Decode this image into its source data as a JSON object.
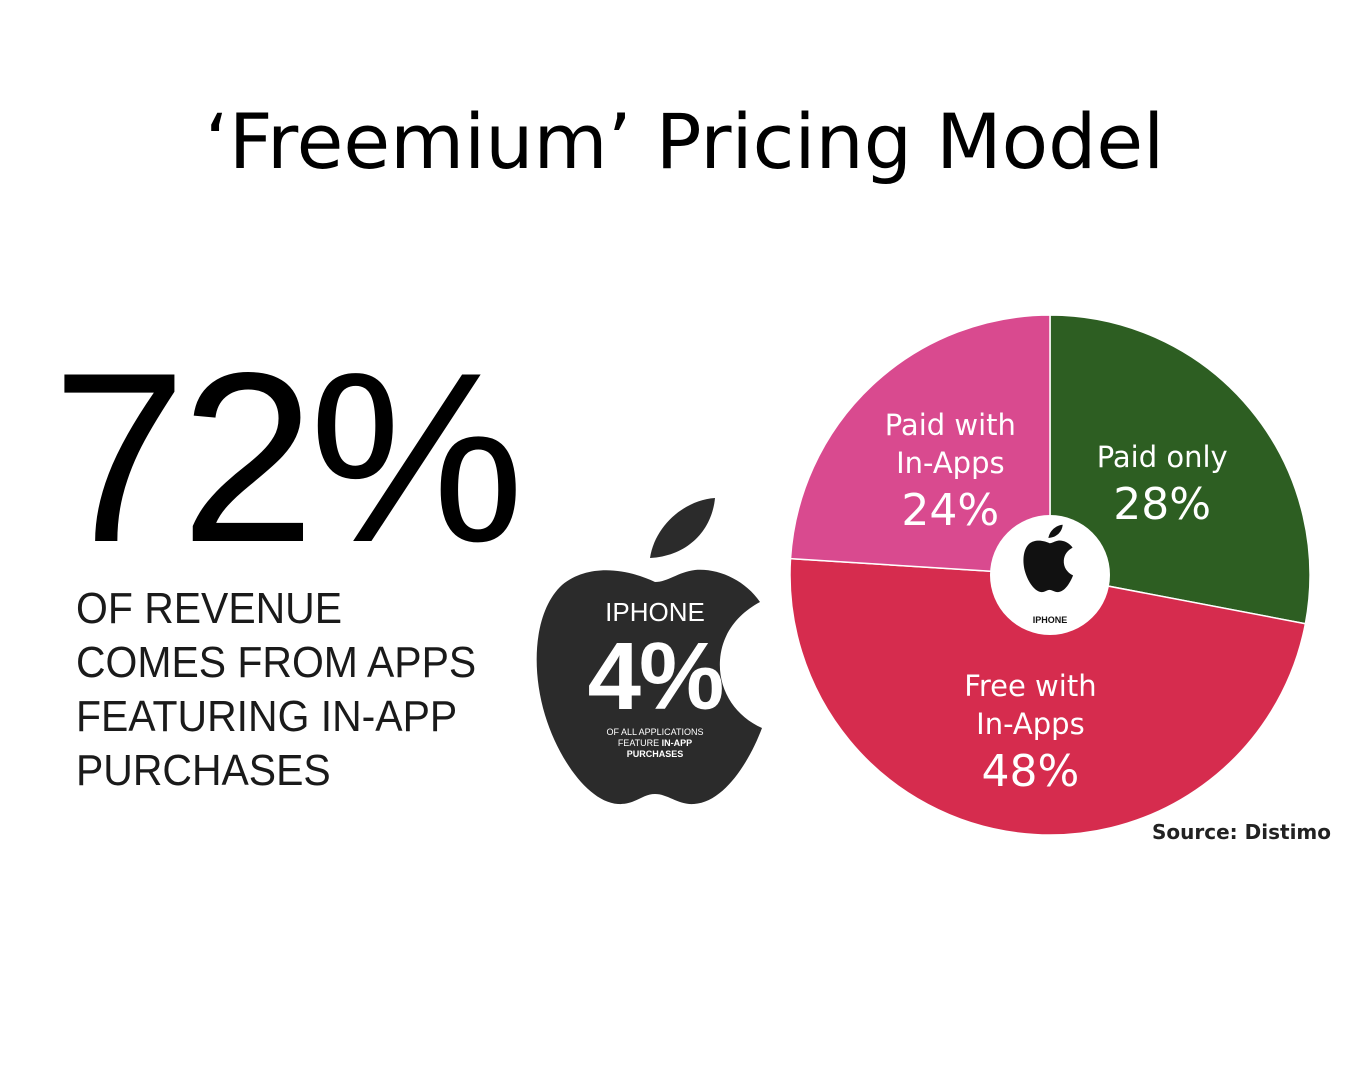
{
  "slide": {
    "title": "‘Freemium’ Pricing Model"
  },
  "left_stat": {
    "value": "72%",
    "lines": [
      "OF REVENUE",
      "COMES FROM APPS",
      "FEATURING IN-APP",
      "PURCHASES"
    ]
  },
  "apple_badge": {
    "label": "IPHONE",
    "value": "4%",
    "line1": "OF ALL APPLICATIONS",
    "line2_prefix": "FEATURE ",
    "line2_bold": "IN-APP",
    "line3": "PURCHASES",
    "color": "#2b2b2b"
  },
  "chart_data": {
    "type": "pie",
    "title": "",
    "center_label": "IPHONE",
    "source": "Source: Distimo",
    "slices": [
      {
        "label_lines": [
          "Paid only"
        ],
        "value": 28,
        "value_label": "28%",
        "color": "#2d5e22"
      },
      {
        "label_lines": [
          "Free with",
          "In-Apps"
        ],
        "value": 48,
        "value_label": "48%",
        "color": "#d62c4e"
      },
      {
        "label_lines": [
          "Paid with",
          "In-Apps"
        ],
        "value": 24,
        "value_label": "24%",
        "color": "#d94a8f"
      }
    ]
  }
}
